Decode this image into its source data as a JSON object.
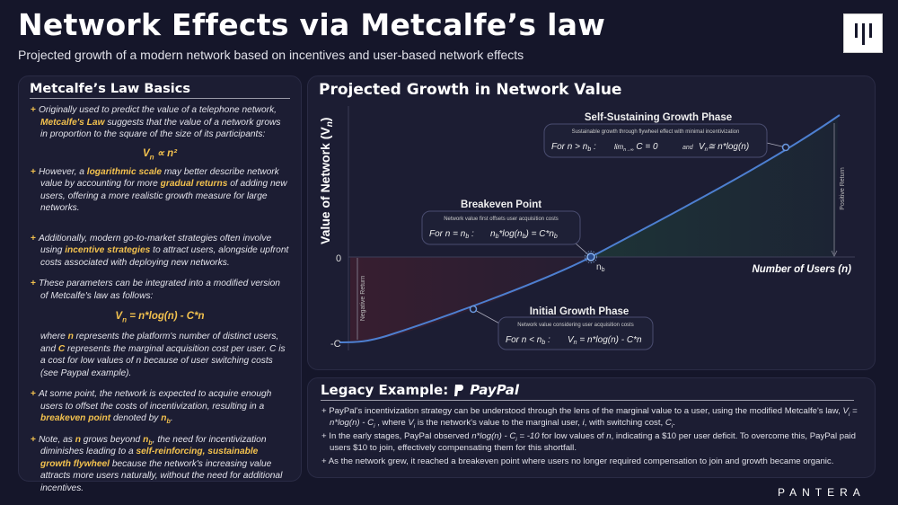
{
  "header": {
    "title": "Network Effects via Metcalfe’s law",
    "subtitle": "Projected growth of a modern network based on incentives and user-based network effects",
    "logo_icon": "pantera-logo-icon"
  },
  "left_panel": {
    "heading": "Metcalfe’s Law Basics",
    "bullets": [
      [
        {
          "t": "Originally used to predict the value of a telephone network, "
        },
        {
          "t": "Metcalfe's Law",
          "s": "hl"
        },
        {
          "t": " suggests that the value of a network grows in proportion to the square of the size of its participants:"
        }
      ],
      [
        {
          "t": "However, a "
        },
        {
          "t": "logarithmic scale",
          "s": "hl"
        },
        {
          "t": " may better describe network value by accounting for more "
        },
        {
          "t": "gradual returns",
          "s": "hl"
        },
        {
          "t": " of adding new users, offering a more realistic growth measure for large networks."
        }
      ],
      [
        {
          "t": "Additionally, modern go-to-market strategies often involve using "
        },
        {
          "t": "incentive strategies",
          "s": "hl"
        },
        {
          "t": " to attract users, alongside upfront costs associated with deploying new networks."
        }
      ],
      [
        {
          "t": "These parameters can be integrated into a modified version of Metcalfe's law as follows:"
        }
      ],
      [
        {
          "t": "At some point, the network is expected to acquire enough users to offset the costs of incentivization, resulting in a "
        },
        {
          "t": "breakeven point",
          "s": "hl"
        },
        {
          "t": " denoted by "
        },
        {
          "t": "n",
          "s": "hl"
        },
        {
          "t": "b",
          "s": "hlsub"
        },
        {
          "t": "."
        }
      ],
      [
        {
          "t": "Note, as "
        },
        {
          "t": "n",
          "s": "hl"
        },
        {
          "t": " grows beyond "
        },
        {
          "t": "n",
          "s": "hl"
        },
        {
          "t": "b",
          "s": "hlsub"
        },
        {
          "t": ", the need for incentivization diminishes leading to a "
        },
        {
          "t": "self-reinforcing, sustainable growth flywheel",
          "s": "hl"
        },
        {
          "t": " because the network's increasing value attracts more users naturally, without the need for additional incentives."
        }
      ]
    ],
    "formula1": [
      {
        "t": "V"
      },
      {
        "t": "n",
        "s": "sub"
      },
      {
        "t": " ∝ n²"
      }
    ],
    "formula2": [
      {
        "t": "V"
      },
      {
        "t": "n",
        "s": "sub"
      },
      {
        "t": " = n*log(n) - C*n"
      }
    ],
    "where": [
      {
        "t": "where "
      },
      {
        "t": "n",
        "s": "hl"
      },
      {
        "t": " represents the platform's number of distinct users, and "
      },
      {
        "t": "C",
        "s": "hl"
      },
      {
        "t": " represents the marginal acquisition cost per user. C is a cost for low values of n because of user switching costs (see Paypal example)."
      }
    ]
  },
  "chart_panel": {
    "title": "Projected Growth in Network Value",
    "y_axis_label": "Value of Network (Vn)",
    "y_axis_label_main": "Value of Network (V",
    "y_axis_label_sub": "n",
    "y_axis_label_end": ")",
    "x_axis_label": "Number of Users (n)",
    "y_ticks": [
      "0",
      "-C"
    ],
    "breakeven_tick": "n",
    "breakeven_tick_sub": "b",
    "positive_label": "Positive  Return",
    "negative_label": "Negative  Return",
    "line_color": "#4d7fd0",
    "positive_fill": "#1f4a3a",
    "negative_fill": "#4a1f2e",
    "annotations": {
      "self_sustaining": {
        "title": "Self-Sustaining Growth Phase",
        "desc": "Sustainable growth through flywheel effect with minimal incentivization",
        "cond": "For n > n",
        "cond_sub": "b",
        "cond_end": " :",
        "f1": "lim",
        "f1_sub": "n→∞",
        "f1_end": " C = 0",
        "and": "and",
        "f2": "V",
        "f2_sub": "n",
        "f2_end": "≅ n*log(n)"
      },
      "breakeven": {
        "title": "Breakeven Point",
        "desc": "Network value first offsets user acquisition costs",
        "cond": "For n = n",
        "cond_sub": "b",
        "cond_end": " :",
        "f": "n",
        "f_sub": "b",
        "f_mid": "*log(n",
        "f_sub2": "b",
        "f_mid2": ") = C*n",
        "f_sub3": "b"
      },
      "initial": {
        "title": "Initial Growth Phase",
        "desc": "Network value considering user acquisition costs",
        "cond": "For n < n",
        "cond_sub": "b",
        "cond_end": " :",
        "f": "V",
        "f_sub": "n",
        "f_end": " = n*log(n) - C*n"
      }
    }
  },
  "legacy_panel": {
    "heading": "Legacy Example:",
    "brand": "PayPal",
    "bullets": [
      [
        {
          "t": "PayPal's incentivization strategy can be understood through the lens of the marginal value to a user, using the modified Metcalfe's law, "
        },
        {
          "t": "V",
          "s": "i"
        },
        {
          "t": "i",
          "s": "isub"
        },
        {
          "t": " = ",
          "s": "i"
        },
        {
          "t": "n*log(n) - C",
          "s": "i"
        },
        {
          "t": "i",
          "s": "isub"
        },
        {
          "t": " , where "
        },
        {
          "t": "V",
          "s": "i"
        },
        {
          "t": "i",
          "s": "isub"
        },
        {
          "t": " is the network's value to the marginal user, "
        },
        {
          "t": "i",
          "s": "i"
        },
        {
          "t": ", with switching cost, "
        },
        {
          "t": "C",
          "s": "i"
        },
        {
          "t": "i",
          "s": "isub"
        },
        {
          "t": "."
        }
      ],
      [
        {
          "t": "In the early stages, PayPal observed "
        },
        {
          "t": "n*log(n) - C",
          "s": "i"
        },
        {
          "t": "i",
          "s": "isub"
        },
        {
          "t": " = -10",
          "s": "i"
        },
        {
          "t": " for low values of "
        },
        {
          "t": "n",
          "s": "i"
        },
        {
          "t": ", indicating a $10 per user deficit. To overcome this, PayPal paid users $10 to join, effectively compensating them for this shortfall."
        }
      ],
      [
        {
          "t": "As the network grew, it reached a breakeven point where users no longer required compensation to join and growth became organic."
        }
      ]
    ]
  },
  "footer": {
    "brand": "PANTERA"
  }
}
